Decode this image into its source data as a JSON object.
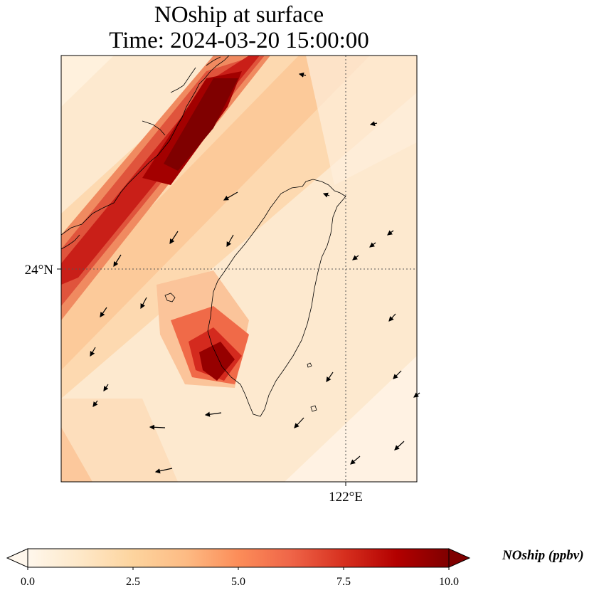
{
  "title": {
    "line1": "NOship at surface",
    "line2": "Time: 2024-03-20 15:00:00"
  },
  "map": {
    "latitude_label": "24°N",
    "longitude_label": "122°E",
    "gridlines": "dotted"
  },
  "colorbar": {
    "label": "NOship (ppbv)",
    "ticks": [
      "0.0",
      "2.5",
      "5.0",
      "7.5",
      "10.0"
    ],
    "min": 0,
    "max": 10,
    "extend": "both",
    "colormap": "OrRd",
    "colors": [
      "#fff7ec",
      "#fee8c8",
      "#fdd49e",
      "#fdbb84",
      "#fc8d59",
      "#ef6548",
      "#d7301f",
      "#b30000",
      "#7f0000"
    ]
  }
}
